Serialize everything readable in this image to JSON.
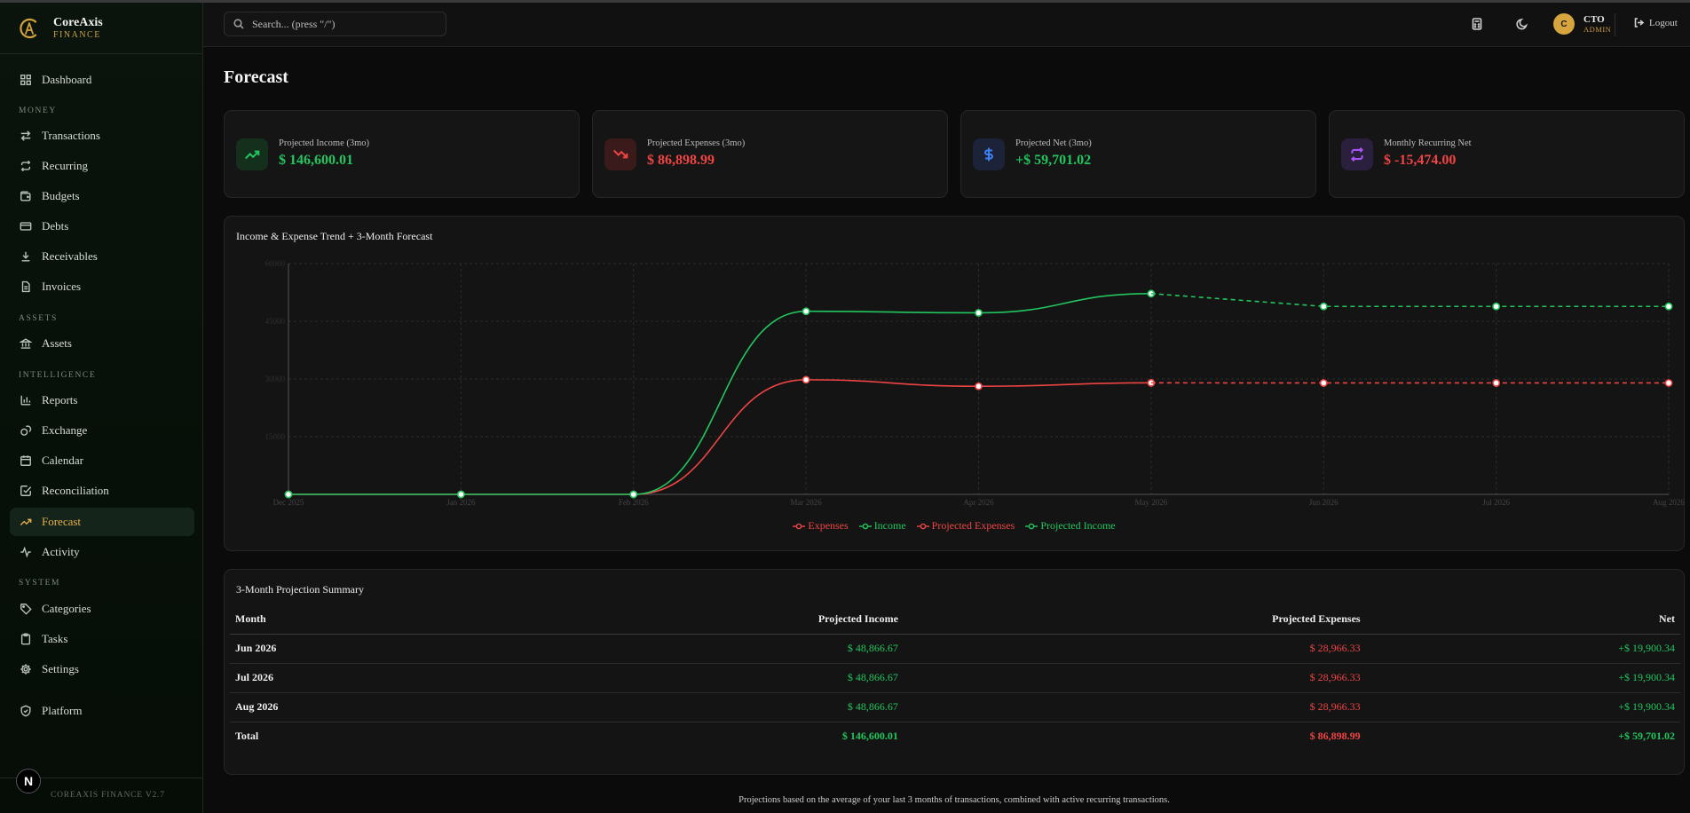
{
  "app": {
    "name": "CoreAxis",
    "subtitle": "FINANCE",
    "version": "COREAXIS FINANCE V2.7"
  },
  "sidebar": {
    "sections": [
      "MONEY",
      "ASSETS",
      "INTELLIGENCE",
      "SYSTEM"
    ],
    "items": [
      {
        "label": "Dashboard",
        "icon": "grid-icon"
      },
      {
        "label": "Transactions",
        "icon": "arrows-swap-icon"
      },
      {
        "label": "Recurring",
        "icon": "repeat-icon"
      },
      {
        "label": "Budgets",
        "icon": "wallet-icon"
      },
      {
        "label": "Debts",
        "icon": "credit-card-icon"
      },
      {
        "label": "Receivables",
        "icon": "download-icon"
      },
      {
        "label": "Invoices",
        "icon": "document-icon"
      },
      {
        "label": "Assets",
        "icon": "bank-icon"
      },
      {
        "label": "Reports",
        "icon": "bar-chart-icon"
      },
      {
        "label": "Exchange",
        "icon": "coins-icon"
      },
      {
        "label": "Calendar",
        "icon": "calendar-icon"
      },
      {
        "label": "Reconciliation",
        "icon": "check-square-icon"
      },
      {
        "label": "Forecast",
        "icon": "trend-up-icon"
      },
      {
        "label": "Activity",
        "icon": "activity-icon"
      },
      {
        "label": "Categories",
        "icon": "tag-icon"
      },
      {
        "label": "Tasks",
        "icon": "clipboard-icon"
      },
      {
        "label": "Settings",
        "icon": "gear-icon"
      },
      {
        "label": "Platform",
        "icon": "shield-icon"
      }
    ],
    "badge": "N"
  },
  "header": {
    "search_placeholder": "Search... (press \"/\")",
    "user": {
      "initial": "C",
      "name": "CTO",
      "role": "ADMIN"
    },
    "logout_label": "Logout"
  },
  "page": {
    "title": "Forecast"
  },
  "cards": [
    {
      "label": "Projected Income (3mo)",
      "value": "$ 146,600.01",
      "color": "#22c55e",
      "icon": "trend-up-icon"
    },
    {
      "label": "Projected Expenses (3mo)",
      "value": "$ 86,898.99",
      "color": "#ef4444",
      "icon": "trend-down-icon"
    },
    {
      "label": "Projected Net (3mo)",
      "value": "+$ 59,701.02",
      "color": "#22c55e",
      "icon": "dollar-icon"
    },
    {
      "label": "Monthly Recurring Net",
      "value": "$ -15,474.00",
      "color": "#ef4444",
      "icon": "repeat-icon"
    }
  ],
  "chart_panel": {
    "title": "Income & Expense Trend + 3-Month Forecast"
  },
  "chart_data": {
    "type": "line",
    "categories": [
      "Dec 2025",
      "Jan 2026",
      "Feb 2026",
      "Mar 2026",
      "Apr 2026",
      "May 2026",
      "Jun 2026",
      "Jul 2026",
      "Aug 2026"
    ],
    "yticks": [
      15000,
      30000,
      45000,
      60000
    ],
    "ylim": [
      0,
      60000
    ],
    "grid": true,
    "legend_position": "bottom",
    "series": [
      {
        "name": "Expenses",
        "color": "#ef4444",
        "dashed": false,
        "values": [
          0,
          0,
          0,
          29800,
          28100,
          29000,
          null,
          null,
          null
        ]
      },
      {
        "name": "Income",
        "color": "#22c55e",
        "dashed": false,
        "values": [
          0,
          0,
          0,
          47600,
          47200,
          52200,
          null,
          null,
          null
        ]
      },
      {
        "name": "Projected Expenses",
        "color": "#ef4444",
        "dashed": true,
        "values": [
          null,
          null,
          null,
          null,
          null,
          29000,
          28966.33,
          28966.33,
          28966.33
        ]
      },
      {
        "name": "Projected Income",
        "color": "#22c55e",
        "dashed": true,
        "values": [
          null,
          null,
          null,
          null,
          null,
          52200,
          48866.67,
          48866.67,
          48866.67
        ]
      }
    ]
  },
  "summary": {
    "title": "3-Month Projection Summary",
    "columns": [
      "Month",
      "Projected Income",
      "Projected Expenses",
      "Net"
    ],
    "rows": [
      [
        "Jun 2026",
        "$ 48,866.67",
        "$ 28,966.33",
        "+$ 19,900.34"
      ],
      [
        "Jul 2026",
        "$ 48,866.67",
        "$ 28,966.33",
        "+$ 19,900.34"
      ],
      [
        "Aug 2026",
        "$ 48,866.67",
        "$ 28,966.33",
        "+$ 19,900.34"
      ]
    ],
    "total": [
      "Total",
      "$ 146,600.01",
      "$ 86,898.99",
      "+$ 59,701.02"
    ]
  },
  "footnote": "Projections based on the average of your last 3 months of transactions, combined with active recurring transactions."
}
